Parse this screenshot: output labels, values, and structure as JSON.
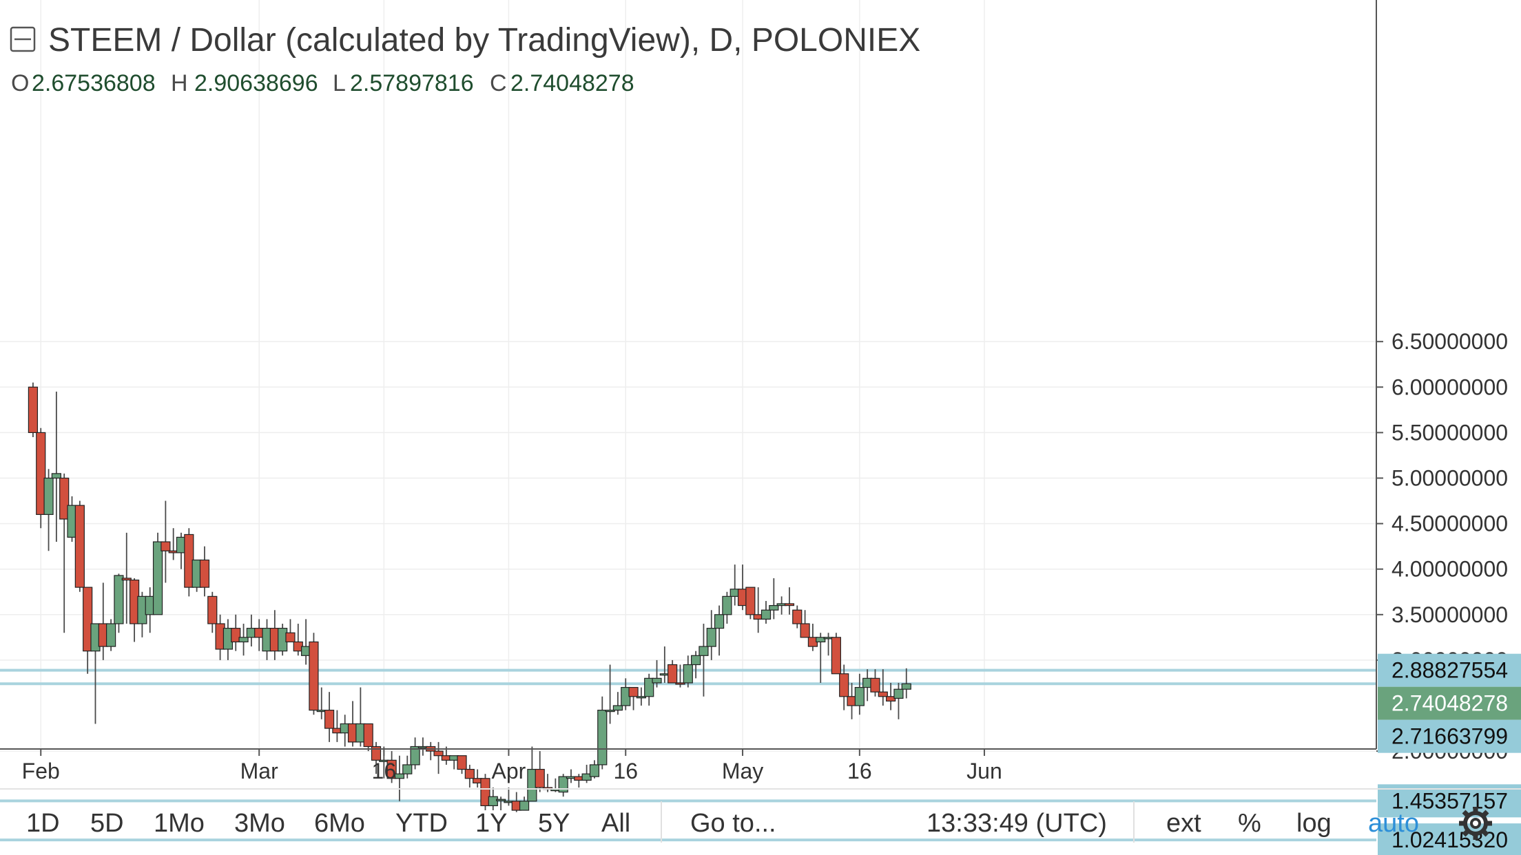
{
  "chart_data": {
    "type": "candlestick",
    "title": "STEEM / Dollar (calculated by TradingView), D, POLONIEX",
    "legend": {
      "labels": [
        "O",
        "H",
        "L",
        "C"
      ],
      "values": [
        "2.67536808",
        "2.90638696",
        "2.57897816",
        "2.74048278"
      ]
    },
    "y_ticks": [
      "6.50000000",
      "6.00000000",
      "5.50000000",
      "5.00000000",
      "4.50000000",
      "4.00000000",
      "3.50000000",
      "3.00000000",
      "2.00000000"
    ],
    "ylim": [
      0.9,
      6.9
    ],
    "x_ticks": [
      "Feb",
      "Mar",
      "16",
      "Apr",
      "16",
      "May",
      "16",
      "Jun"
    ],
    "x_tick_days": [
      2,
      30,
      46,
      62,
      77,
      92,
      107,
      123
    ],
    "grid": true,
    "bullish_color": "#6aa37d",
    "bearish_color": "#d2503e",
    "line_color": "#a9d3de",
    "tag_color": "#95cbd9",
    "last_price_color": "#6aa37d",
    "horizontal_lines": [
      2.88827554,
      2.74048278,
      1.45357157,
      1.0241532
    ],
    "price_tags": [
      {
        "label": "2.88827554",
        "value": 2.88827554,
        "kind": "line"
      },
      {
        "label": "2.74048278",
        "value": 2.74048278,
        "kind": "last"
      },
      {
        "label": "2.71663799",
        "value": 2.71663799,
        "kind": "line"
      },
      {
        "label": "1.45357157",
        "value": 1.45357157,
        "kind": "line"
      },
      {
        "label": "1.02415320",
        "value": 1.0241532,
        "kind": "line"
      }
    ],
    "x_unit": "day index (1 = Jan 29)",
    "candles": [
      [
        1,
        6.0,
        6.05,
        5.45,
        5.5
      ],
      [
        2,
        5.5,
        5.55,
        4.45,
        4.6
      ],
      [
        3,
        4.6,
        5.1,
        4.2,
        5.0
      ],
      [
        4,
        5.0,
        5.95,
        4.3,
        5.05
      ],
      [
        5,
        5.0,
        5.05,
        3.3,
        4.55
      ],
      [
        6,
        4.35,
        4.8,
        4.3,
        4.7
      ],
      [
        7,
        4.7,
        4.75,
        3.75,
        3.8
      ],
      [
        8,
        3.8,
        3.8,
        2.85,
        3.1
      ],
      [
        9,
        3.1,
        3.4,
        2.3,
        3.4
      ],
      [
        10,
        3.4,
        3.85,
        3.0,
        3.15
      ],
      [
        11,
        3.15,
        3.45,
        3.1,
        3.4
      ],
      [
        12,
        3.4,
        3.95,
        3.3,
        3.93
      ],
      [
        13,
        3.9,
        4.4,
        3.4,
        3.88
      ],
      [
        14,
        3.88,
        3.9,
        3.2,
        3.4
      ],
      [
        15,
        3.4,
        3.75,
        3.25,
        3.7
      ],
      [
        16,
        3.5,
        3.8,
        3.3,
        3.7
      ],
      [
        17,
        3.5,
        4.4,
        3.5,
        4.3
      ],
      [
        18,
        4.3,
        4.75,
        3.85,
        4.2
      ],
      [
        19,
        4.2,
        4.45,
        4.1,
        4.18
      ],
      [
        20,
        4.18,
        4.4,
        4.0,
        4.35
      ],
      [
        21,
        4.38,
        4.45,
        3.7,
        3.8
      ],
      [
        22,
        3.8,
        4.1,
        3.75,
        4.1
      ],
      [
        23,
        4.1,
        4.25,
        3.7,
        3.8
      ],
      [
        24,
        3.7,
        3.75,
        3.3,
        3.4
      ],
      [
        25,
        3.4,
        3.5,
        3.0,
        3.12
      ],
      [
        26,
        3.12,
        3.45,
        3.0,
        3.35
      ],
      [
        27,
        3.35,
        3.5,
        3.1,
        3.2
      ],
      [
        28,
        3.2,
        3.4,
        3.05,
        3.25
      ],
      [
        29,
        3.25,
        3.5,
        3.15,
        3.35
      ],
      [
        30,
        3.35,
        3.45,
        3.1,
        3.25
      ],
      [
        31,
        3.1,
        3.45,
        3.0,
        3.35
      ],
      [
        32,
        3.35,
        3.55,
        3.0,
        3.1
      ],
      [
        33,
        3.1,
        3.4,
        3.05,
        3.35
      ],
      [
        34,
        3.3,
        3.45,
        3.2,
        3.2
      ],
      [
        35,
        3.2,
        3.4,
        3.05,
        3.1
      ],
      [
        36,
        3.05,
        3.45,
        2.95,
        3.15
      ],
      [
        37,
        3.2,
        3.3,
        2.4,
        2.45
      ],
      [
        38,
        2.45,
        2.7,
        2.35,
        2.45
      ],
      [
        39,
        2.45,
        2.65,
        2.1,
        2.25
      ],
      [
        40,
        2.25,
        2.45,
        2.1,
        2.2
      ],
      [
        41,
        2.2,
        2.4,
        2.05,
        2.3
      ],
      [
        42,
        2.3,
        2.55,
        2.05,
        2.1
      ],
      [
        43,
        2.1,
        2.7,
        2.05,
        2.3
      ],
      [
        44,
        2.3,
        2.3,
        2.0,
        2.05
      ],
      [
        45,
        2.05,
        2.1,
        1.75,
        1.9
      ],
      [
        46,
        1.9,
        2.05,
        1.7,
        1.9
      ],
      [
        47,
        1.9,
        2.0,
        1.65,
        1.7
      ],
      [
        48,
        1.7,
        1.95,
        1.45,
        1.75
      ],
      [
        49,
        1.75,
        1.95,
        1.7,
        1.85
      ],
      [
        50,
        1.85,
        2.15,
        1.8,
        2.05
      ],
      [
        51,
        2.05,
        2.15,
        1.95,
        2.05
      ],
      [
        52,
        2.05,
        2.1,
        1.9,
        2.0
      ],
      [
        53,
        2.0,
        2.1,
        1.75,
        1.95
      ],
      [
        54,
        1.95,
        2.05,
        1.85,
        1.9
      ],
      [
        55,
        1.9,
        1.95,
        1.8,
        1.95
      ],
      [
        56,
        1.95,
        1.95,
        1.75,
        1.8
      ],
      [
        57,
        1.8,
        1.85,
        1.6,
        1.7
      ],
      [
        58,
        1.7,
        1.8,
        1.6,
        1.65
      ],
      [
        59,
        1.7,
        1.75,
        1.35,
        1.4
      ],
      [
        60,
        1.4,
        1.6,
        1.35,
        1.5
      ],
      [
        61,
        1.47,
        1.5,
        1.35,
        1.47
      ],
      [
        62,
        1.45,
        1.6,
        1.4,
        1.45
      ],
      [
        63,
        1.45,
        1.55,
        1.33,
        1.35
      ],
      [
        64,
        1.35,
        1.5,
        1.35,
        1.45
      ],
      [
        65,
        1.45,
        2.05,
        1.45,
        1.8
      ],
      [
        66,
        1.8,
        2.0,
        1.55,
        1.6
      ],
      [
        67,
        1.6,
        1.75,
        1.55,
        1.58
      ],
      [
        68,
        1.58,
        1.7,
        1.55,
        1.58
      ],
      [
        69,
        1.55,
        1.75,
        1.5,
        1.72
      ],
      [
        70,
        1.7,
        1.8,
        1.65,
        1.72
      ],
      [
        71,
        1.72,
        1.75,
        1.6,
        1.68
      ],
      [
        72,
        1.68,
        1.85,
        1.65,
        1.75
      ],
      [
        73,
        1.72,
        1.9,
        1.7,
        1.85
      ],
      [
        74,
        1.85,
        2.6,
        1.8,
        2.45
      ],
      [
        75,
        2.45,
        2.95,
        2.3,
        2.45
      ],
      [
        76,
        2.45,
        2.65,
        2.4,
        2.5
      ],
      [
        77,
        2.5,
        2.8,
        2.45,
        2.7
      ],
      [
        78,
        2.7,
        2.7,
        2.45,
        2.6
      ],
      [
        79,
        2.6,
        2.7,
        2.5,
        2.6
      ],
      [
        80,
        2.6,
        2.85,
        2.5,
        2.8
      ],
      [
        81,
        2.75,
        3.0,
        2.7,
        2.8
      ],
      [
        82,
        2.85,
        3.15,
        2.75,
        2.85
      ],
      [
        83,
        2.95,
        3.0,
        2.75,
        2.75
      ],
      [
        84,
        2.75,
        2.95,
        2.7,
        2.74
      ],
      [
        85,
        2.75,
        3.05,
        2.7,
        2.95
      ],
      [
        86,
        2.95,
        3.1,
        2.8,
        3.05
      ],
      [
        87,
        3.05,
        3.4,
        2.6,
        3.15
      ],
      [
        88,
        3.15,
        3.55,
        3.0,
        3.35
      ],
      [
        89,
        3.35,
        3.6,
        3.05,
        3.5
      ],
      [
        90,
        3.5,
        3.75,
        3.4,
        3.7
      ],
      [
        91,
        3.7,
        4.05,
        3.6,
        3.78
      ],
      [
        92,
        3.78,
        4.05,
        3.55,
        3.6
      ],
      [
        93,
        3.8,
        3.8,
        3.45,
        3.5
      ],
      [
        94,
        3.5,
        3.8,
        3.3,
        3.45
      ],
      [
        95,
        3.45,
        3.65,
        3.4,
        3.55
      ],
      [
        96,
        3.55,
        3.9,
        3.45,
        3.6
      ],
      [
        97,
        3.6,
        3.7,
        3.5,
        3.62
      ],
      [
        98,
        3.62,
        3.8,
        3.5,
        3.6
      ],
      [
        99,
        3.55,
        3.6,
        3.35,
        3.4
      ],
      [
        100,
        3.4,
        3.55,
        3.25,
        3.25
      ],
      [
        101,
        3.25,
        3.4,
        3.1,
        3.15
      ],
      [
        102,
        3.2,
        3.3,
        2.75,
        3.25
      ],
      [
        103,
        3.25,
        3.3,
        3.05,
        3.25
      ],
      [
        104,
        3.25,
        3.3,
        2.85,
        2.85
      ],
      [
        105,
        2.85,
        2.95,
        2.45,
        2.6
      ],
      [
        106,
        2.6,
        2.75,
        2.35,
        2.5
      ],
      [
        107,
        2.5,
        2.85,
        2.4,
        2.7
      ],
      [
        108,
        2.7,
        2.9,
        2.55,
        2.8
      ],
      [
        109,
        2.8,
        2.9,
        2.6,
        2.65
      ],
      [
        110,
        2.65,
        2.9,
        2.5,
        2.6
      ],
      [
        111,
        2.6,
        2.75,
        2.45,
        2.55
      ],
      [
        112,
        2.58,
        2.75,
        2.35,
        2.68
      ],
      [
        113,
        2.68,
        2.91,
        2.58,
        2.74
      ]
    ]
  },
  "toolbar": {
    "ranges": [
      "1D",
      "5D",
      "1Mo",
      "3Mo",
      "6Mo",
      "YTD",
      "1Y",
      "5Y",
      "All"
    ],
    "goto": "Go to...",
    "clock": "13:33:49 (UTC)",
    "ext": "ext",
    "percent": "%",
    "log": "log",
    "auto": "auto",
    "settings_icon": "gear-icon"
  }
}
